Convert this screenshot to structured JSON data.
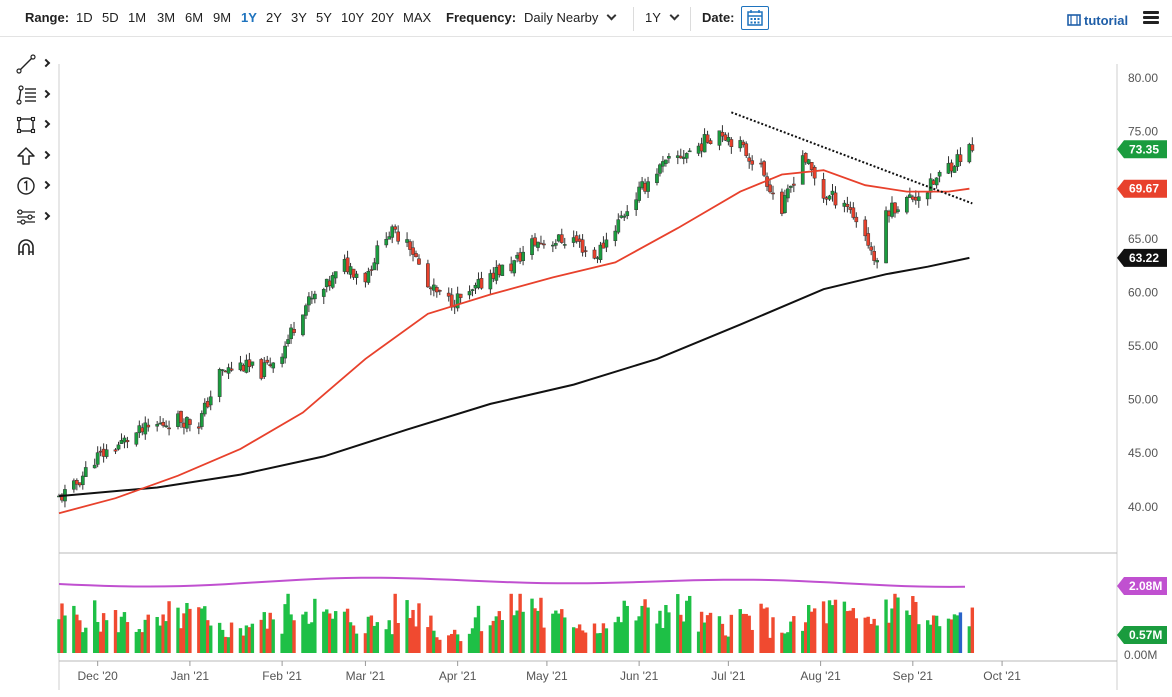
{
  "toolbar": {
    "range_label": "Range:",
    "ranges": [
      "1D",
      "5D",
      "1M",
      "3M",
      "6M",
      "9M",
      "1Y",
      "2Y",
      "3Y",
      "5Y",
      "10Y",
      "20Y",
      "MAX"
    ],
    "active_range": "1Y",
    "frequency_label": "Frequency:",
    "frequency_value": "Daily Nearby",
    "period_value": "1Y",
    "date_label": "Date:",
    "tutorial_label": "tutorial"
  },
  "drawing_tools": [
    "trend-line-icon",
    "fib-levels-icon",
    "rectangle-icon",
    "arrow-up-icon",
    "number-marker-icon",
    "pattern-tool-icon",
    "magnet-icon"
  ],
  "colors": {
    "up_candle": "#1a9c3e",
    "down_candle": "#e8412c",
    "ma_short": "#e8412c",
    "ma_long": "#111111",
    "volume_avg": "#c050d0",
    "volume_up": "#1ec046",
    "volume_down": "#f04a30",
    "volume_highlight": "#2a63c9"
  },
  "chart_data": {
    "type": "candlestick",
    "price_axis": {
      "ticks": [
        "80.00",
        "75.00",
        "70.00",
        "65.00",
        "60.00",
        "55.00",
        "50.00",
        "45.00",
        "40.00"
      ],
      "ylim": [
        38,
        81.8
      ]
    },
    "x_axis": {
      "ticks": [
        "Dec '20",
        "Jan '21",
        "Feb '21",
        "Mar '21",
        "Apr '21",
        "May '21",
        "Jun '21",
        "Jul '21",
        "Aug '21",
        "Sep '21",
        "Oct '21"
      ]
    },
    "close_path": [
      [
        "2020-11-18",
        40.8
      ],
      [
        "2020-11-23",
        41.8
      ],
      [
        "2020-11-30",
        44.5
      ],
      [
        "2020-12-07",
        45.6
      ],
      [
        "2020-12-14",
        46.8
      ],
      [
        "2020-12-21",
        47.6
      ],
      [
        "2020-12-28",
        48.2
      ],
      [
        "2021-01-04",
        47.8
      ],
      [
        "2021-01-11",
        52.4
      ],
      [
        "2021-01-18",
        53.2
      ],
      [
        "2021-01-25",
        52.6
      ],
      [
        "2021-02-01",
        54.5
      ],
      [
        "2021-02-08",
        58.6
      ],
      [
        "2021-02-15",
        60.2
      ],
      [
        "2021-02-22",
        62.6
      ],
      [
        "2021-03-01",
        61.4
      ],
      [
        "2021-03-08",
        65.6
      ],
      [
        "2021-03-15",
        65.2
      ],
      [
        "2021-03-22",
        60.4
      ],
      [
        "2021-03-29",
        59.2
      ],
      [
        "2021-04-05",
        59.6
      ],
      [
        "2021-04-12",
        61.8
      ],
      [
        "2021-04-19",
        62.4
      ],
      [
        "2021-04-26",
        64.6
      ],
      [
        "2021-05-03",
        64.8
      ],
      [
        "2021-05-10",
        65.0
      ],
      [
        "2021-05-17",
        63.2
      ],
      [
        "2021-05-24",
        66.2
      ],
      [
        "2021-05-31",
        69.0
      ],
      [
        "2021-06-07",
        71.4
      ],
      [
        "2021-06-14",
        72.6
      ],
      [
        "2021-06-21",
        73.6
      ],
      [
        "2021-06-28",
        75.2
      ],
      [
        "2021-07-05",
        73.6
      ],
      [
        "2021-07-12",
        71.6
      ],
      [
        "2021-07-19",
        67.6
      ],
      [
        "2021-07-26",
        72.9
      ],
      [
        "2021-08-02",
        69.0
      ],
      [
        "2021-08-09",
        68.6
      ],
      [
        "2021-08-16",
        65.4
      ],
      [
        "2021-08-20",
        62.4
      ],
      [
        "2021-08-23",
        67.6
      ],
      [
        "2021-08-30",
        68.6
      ],
      [
        "2021-09-06",
        69.6
      ],
      [
        "2021-09-13",
        71.8
      ],
      [
        "2021-09-20",
        73.35
      ]
    ],
    "ma_short": [
      [
        "2020-11-18",
        39.4
      ],
      [
        "2020-12-07",
        40.8
      ],
      [
        "2020-12-28",
        42.9
      ],
      [
        "2021-01-18",
        45.4
      ],
      [
        "2021-02-08",
        48.8
      ],
      [
        "2021-03-01",
        53.8
      ],
      [
        "2021-03-22",
        58.0
      ],
      [
        "2021-04-12",
        59.8
      ],
      [
        "2021-05-03",
        61.4
      ],
      [
        "2021-05-24",
        62.8
      ],
      [
        "2021-06-14",
        66.0
      ],
      [
        "2021-07-05",
        69.4
      ],
      [
        "2021-07-19",
        71.0
      ],
      [
        "2021-08-02",
        71.4
      ],
      [
        "2021-08-16",
        70.0
      ],
      [
        "2021-08-30",
        69.4
      ],
      [
        "2021-09-13",
        69.4
      ],
      [
        "2021-09-20",
        69.67
      ]
    ],
    "ma_long": [
      [
        "2020-11-18",
        41.0
      ],
      [
        "2020-12-21",
        41.8
      ],
      [
        "2021-01-18",
        43.0
      ],
      [
        "2021-02-15",
        44.7
      ],
      [
        "2021-03-15",
        47.2
      ],
      [
        "2021-04-12",
        49.6
      ],
      [
        "2021-05-10",
        51.4
      ],
      [
        "2021-06-07",
        53.8
      ],
      [
        "2021-07-05",
        57.0
      ],
      [
        "2021-08-02",
        60.3
      ],
      [
        "2021-08-23",
        61.7
      ],
      [
        "2021-09-06",
        62.4
      ],
      [
        "2021-09-20",
        63.22
      ]
    ],
    "trendline": {
      "from": [
        "2021-07-02",
        76.8
      ],
      "to": [
        "2021-09-21",
        68.3
      ]
    },
    "volume_axis": {
      "ticks": [
        "0.00M"
      ]
    },
    "volume_avg_value": 2.08,
    "volume_path": [
      0.62,
      0.55,
      0.48,
      0.62,
      0.4,
      0.52,
      0.78,
      0.58,
      0.5,
      0.7,
      0.35,
      0.6,
      0.82,
      0.55,
      0.48,
      0.66,
      0.72,
      0.5,
      0.58,
      0.44,
      0.7,
      0.56,
      0.8,
      0.5,
      0.62,
      0.48,
      0.38
    ],
    "labels": {
      "last_price": "73.35",
      "ma_short": "69.67",
      "ma_long": "63.22",
      "volume_avg": "2.08M",
      "volume_last": "0.57M"
    }
  }
}
